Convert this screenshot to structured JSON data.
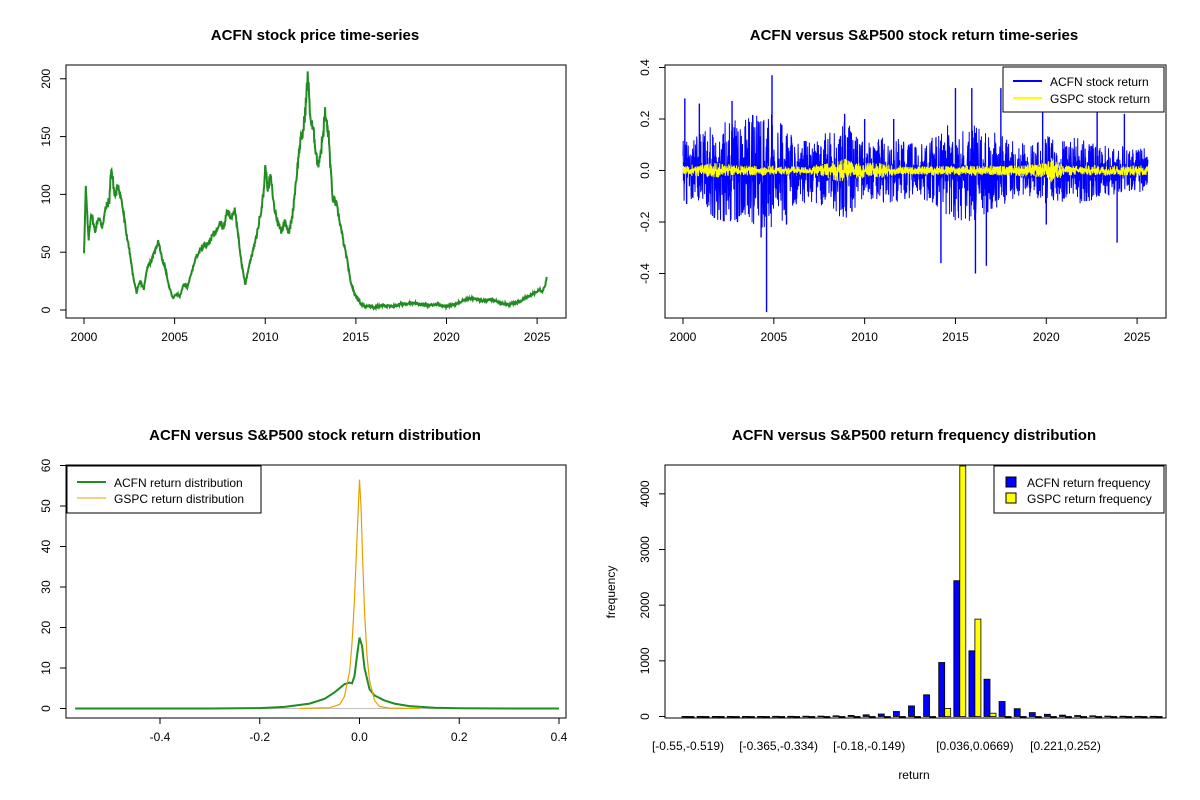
{
  "chart_data": [
    {
      "id": "price",
      "type": "line",
      "title": "ACFN stock price time-series",
      "xlabel": "",
      "ylabel": "",
      "xlim": [
        2000,
        2025.6
      ],
      "ylim": [
        0,
        205
      ],
      "x_ticks": [
        2000,
        2005,
        2010,
        2015,
        2020,
        2025
      ],
      "y_ticks": [
        0,
        50,
        100,
        150,
        200
      ],
      "series": [
        {
          "name": "ACFN price",
          "color": "#228B22",
          "points": [
            [
              2000.0,
              50
            ],
            [
              2000.1,
              105
            ],
            [
              2000.25,
              60
            ],
            [
              2000.4,
              85
            ],
            [
              2000.6,
              68
            ],
            [
              2000.8,
              80
            ],
            [
              2001.0,
              72
            ],
            [
              2001.2,
              88
            ],
            [
              2001.4,
              95
            ],
            [
              2001.5,
              124
            ],
            [
              2001.7,
              98
            ],
            [
              2001.9,
              108
            ],
            [
              2002.1,
              92
            ],
            [
              2002.3,
              70
            ],
            [
              2002.5,
              52
            ],
            [
              2002.7,
              30
            ],
            [
              2002.9,
              15
            ],
            [
              2003.1,
              25
            ],
            [
              2003.3,
              18
            ],
            [
              2003.5,
              38
            ],
            [
              2003.7,
              42
            ],
            [
              2003.9,
              50
            ],
            [
              2004.1,
              60
            ],
            [
              2004.3,
              45
            ],
            [
              2004.5,
              35
            ],
            [
              2004.7,
              20
            ],
            [
              2004.9,
              10
            ],
            [
              2005.1,
              14
            ],
            [
              2005.3,
              12
            ],
            [
              2005.5,
              22
            ],
            [
              2005.7,
              20
            ],
            [
              2005.9,
              30
            ],
            [
              2006.1,
              42
            ],
            [
              2006.3,
              50
            ],
            [
              2006.6,
              56
            ],
            [
              2006.9,
              58
            ],
            [
              2007.1,
              65
            ],
            [
              2007.3,
              68
            ],
            [
              2007.5,
              78
            ],
            [
              2007.7,
              70
            ],
            [
              2007.9,
              86
            ],
            [
              2008.1,
              80
            ],
            [
              2008.3,
              88
            ],
            [
              2008.5,
              65
            ],
            [
              2008.7,
              40
            ],
            [
              2008.9,
              22
            ],
            [
              2009.1,
              38
            ],
            [
              2009.3,
              50
            ],
            [
              2009.5,
              62
            ],
            [
              2009.7,
              80
            ],
            [
              2009.9,
              100
            ],
            [
              2010.0,
              123
            ],
            [
              2010.15,
              105
            ],
            [
              2010.3,
              115
            ],
            [
              2010.5,
              88
            ],
            [
              2010.7,
              75
            ],
            [
              2010.9,
              68
            ],
            [
              2011.1,
              78
            ],
            [
              2011.3,
              66
            ],
            [
              2011.5,
              82
            ],
            [
              2011.7,
              112
            ],
            [
              2011.9,
              142
            ],
            [
              2012.1,
              155
            ],
            [
              2012.25,
              180
            ],
            [
              2012.35,
              203
            ],
            [
              2012.5,
              165
            ],
            [
              2012.7,
              150
            ],
            [
              2012.9,
              125
            ],
            [
              2013.1,
              140
            ],
            [
              2013.3,
              170
            ],
            [
              2013.5,
              150
            ],
            [
              2013.7,
              98
            ],
            [
              2013.9,
              92
            ],
            [
              2014.1,
              78
            ],
            [
              2014.3,
              60
            ],
            [
              2014.5,
              45
            ],
            [
              2014.7,
              25
            ],
            [
              2014.9,
              15
            ],
            [
              2015.1,
              10
            ],
            [
              2015.3,
              5
            ],
            [
              2015.5,
              3
            ],
            [
              2015.7,
              4
            ],
            [
              2016.0,
              2
            ],
            [
              2016.5,
              4
            ],
            [
              2017.0,
              3
            ],
            [
              2017.5,
              5
            ],
            [
              2018.0,
              6
            ],
            [
              2018.5,
              5
            ],
            [
              2019.0,
              4
            ],
            [
              2019.5,
              5
            ],
            [
              2020.0,
              3
            ],
            [
              2020.5,
              5
            ],
            [
              2021.0,
              9
            ],
            [
              2021.5,
              10
            ],
            [
              2022.0,
              8
            ],
            [
              2022.5,
              9
            ],
            [
              2023.0,
              6
            ],
            [
              2023.5,
              5
            ],
            [
              2024.0,
              7
            ],
            [
              2024.3,
              10
            ],
            [
              2024.6,
              12
            ],
            [
              2024.9,
              15
            ],
            [
              2025.1,
              18
            ],
            [
              2025.3,
              16
            ],
            [
              2025.45,
              22
            ],
            [
              2025.55,
              29
            ]
          ]
        }
      ]
    },
    {
      "id": "returns",
      "type": "line",
      "title": "ACFN versus S&P500 stock return time-series",
      "xlabel": "",
      "ylabel": "",
      "xlim": [
        2000,
        2025.6
      ],
      "ylim": [
        -0.55,
        0.4
      ],
      "x_ticks": [
        2000,
        2005,
        2010,
        2015,
        2020,
        2025
      ],
      "y_ticks": [
        -0.4,
        -0.2,
        0.0,
        0.2,
        0.4
      ],
      "y_tick_labels": [
        "-0.4",
        "-0.2",
        "0.0",
        "0.2",
        "0.4"
      ],
      "legend": {
        "position": "top-right",
        "entries": [
          "ACFN stock return",
          "GSPC stock return"
        ]
      },
      "series": [
        {
          "name": "ACFN stock return",
          "color": "#0000FF",
          "band_x": [
            2000,
            2001,
            2002,
            2003,
            2004,
            2005,
            2006,
            2007,
            2008,
            2009,
            2010,
            2011,
            2012,
            2013,
            2014,
            2015,
            2016,
            2017,
            2018,
            2019,
            2020,
            2021,
            2022,
            2023,
            2024,
            2025,
            2025.6
          ],
          "band_amplitude": [
            0.12,
            0.15,
            0.2,
            0.2,
            0.22,
            0.25,
            0.14,
            0.12,
            0.15,
            0.2,
            0.1,
            0.14,
            0.12,
            0.1,
            0.15,
            0.2,
            0.2,
            0.16,
            0.12,
            0.1,
            0.14,
            0.12,
            0.14,
            0.1,
            0.1,
            0.08,
            0.1
          ],
          "spikes": [
            [
              2000.1,
              0.28
            ],
            [
              2000.2,
              -0.13
            ],
            [
              2000.9,
              0.26
            ],
            [
              2002.7,
              0.27
            ],
            [
              2003.0,
              -0.2
            ],
            [
              2004.3,
              -0.26
            ],
            [
              2004.6,
              -0.55
            ],
            [
              2004.9,
              0.37
            ],
            [
              2005.7,
              -0.21
            ],
            [
              2008.9,
              0.22
            ],
            [
              2009.3,
              -0.16
            ],
            [
              2010.0,
              0.2
            ],
            [
              2011.6,
              0.2
            ],
            [
              2014.2,
              -0.36
            ],
            [
              2015.0,
              0.32
            ],
            [
              2015.9,
              0.32
            ],
            [
              2016.1,
              -0.4
            ],
            [
              2016.7,
              -0.37
            ],
            [
              2017.5,
              0.32
            ],
            [
              2019.8,
              0.23
            ],
            [
              2020.0,
              -0.21
            ],
            [
              2022.8,
              0.3
            ],
            [
              2023.9,
              -0.28
            ],
            [
              2024.3,
              0.22
            ]
          ]
        },
        {
          "name": "GSPC stock return",
          "color": "#FFFF00",
          "band_x": [
            2000,
            2002,
            2003,
            2007,
            2008,
            2008.8,
            2009.5,
            2011,
            2012,
            2015,
            2018,
            2020,
            2020.3,
            2021,
            2025.6
          ],
          "band_amplitude": [
            0.02,
            0.03,
            0.02,
            0.015,
            0.03,
            0.05,
            0.03,
            0.03,
            0.015,
            0.02,
            0.02,
            0.03,
            0.05,
            0.02,
            0.02
          ],
          "spikes": []
        }
      ]
    },
    {
      "id": "density",
      "type": "line",
      "title": "ACFN versus S&P500 stock return distribution",
      "xlabel": "",
      "ylabel": "",
      "xlim": [
        -0.57,
        0.4
      ],
      "ylim": [
        -1.5,
        60
      ],
      "x_ticks": [
        -0.4,
        -0.2,
        0.0,
        0.2,
        0.4
      ],
      "x_tick_labels": [
        "-0.4",
        "-0.2",
        "0.0",
        "0.2",
        "0.4"
      ],
      "y_ticks": [
        0,
        10,
        20,
        30,
        40,
        50,
        60
      ],
      "legend": {
        "position": "top-left",
        "entries": [
          "ACFN return distribution",
          "GSPC return distribution"
        ]
      },
      "series": [
        {
          "name": "ACFN return distribution",
          "color": "#228B22",
          "points": [
            [
              -0.57,
              0
            ],
            [
              -0.3,
              0
            ],
            [
              -0.2,
              0.1
            ],
            [
              -0.15,
              0.4
            ],
            [
              -0.1,
              1.2
            ],
            [
              -0.07,
              2.4
            ],
            [
              -0.05,
              4
            ],
            [
              -0.03,
              6
            ],
            [
              -0.02,
              6.4
            ],
            [
              -0.015,
              6.2
            ],
            [
              -0.01,
              8
            ],
            [
              -0.005,
              13
            ],
            [
              0.0,
              17.5
            ],
            [
              0.005,
              15.5
            ],
            [
              0.01,
              10
            ],
            [
              0.02,
              4.8
            ],
            [
              0.03,
              3.2
            ],
            [
              0.05,
              2
            ],
            [
              0.07,
              1.2
            ],
            [
              0.1,
              0.6
            ],
            [
              0.15,
              0.2
            ],
            [
              0.2,
              0.05
            ],
            [
              0.3,
              0
            ],
            [
              0.4,
              0
            ]
          ]
        },
        {
          "name": "GSPC return distribution",
          "color": "#E8A000",
          "points": [
            [
              -0.12,
              0
            ],
            [
              -0.06,
              0.2
            ],
            [
              -0.04,
              1
            ],
            [
              -0.03,
              3
            ],
            [
              -0.02,
              9
            ],
            [
              -0.015,
              16
            ],
            [
              -0.01,
              27
            ],
            [
              -0.005,
              42
            ],
            [
              0.0,
              56.5
            ],
            [
              0.003,
              50
            ],
            [
              0.006,
              38
            ],
            [
              0.01,
              24
            ],
            [
              0.015,
              13
            ],
            [
              0.02,
              7
            ],
            [
              0.03,
              2
            ],
            [
              0.04,
              0.5
            ],
            [
              0.06,
              0.1
            ],
            [
              0.12,
              0
            ]
          ]
        }
      ]
    },
    {
      "id": "histogram",
      "type": "bar",
      "title": "ACFN versus S&P500 return frequency distribution",
      "xlabel": "return",
      "ylabel": "frequency",
      "ylim": [
        0,
        4500
      ],
      "y_ticks": [
        0,
        1000,
        2000,
        3000,
        4000
      ],
      "x_tick_labels": [
        "[-0.55,-0.519)",
        "[-0.365,-0.334)",
        "[-0.18,-0.149)",
        "[0.036,0.0669)",
        "[0.221,0.252)"
      ],
      "x_tick_bins": [
        0,
        6,
        12,
        19,
        25
      ],
      "legend": {
        "position": "top-right",
        "entries": [
          "ACFN return frequency",
          "GSPC return frequency"
        ]
      },
      "series": [
        {
          "name": "ACFN return frequency",
          "color": "#0000FF",
          "values": [
            1,
            1,
            1,
            1,
            2,
            2,
            3,
            4,
            5,
            8,
            12,
            20,
            30,
            45,
            90,
            190,
            390,
            970,
            2440,
            1180,
            670,
            270,
            140,
            70,
            40,
            25,
            18,
            12,
            8,
            6,
            4,
            3
          ]
        },
        {
          "name": "GSPC return frequency",
          "color": "#FFFF00",
          "values": [
            0,
            0,
            0,
            0,
            0,
            0,
            0,
            0,
            0,
            0,
            0,
            0,
            0,
            0,
            0,
            0,
            0,
            145,
            4500,
            1750,
            60,
            0,
            0,
            0,
            0,
            0,
            0,
            0,
            0,
            0,
            0,
            0
          ]
        }
      ]
    }
  ]
}
